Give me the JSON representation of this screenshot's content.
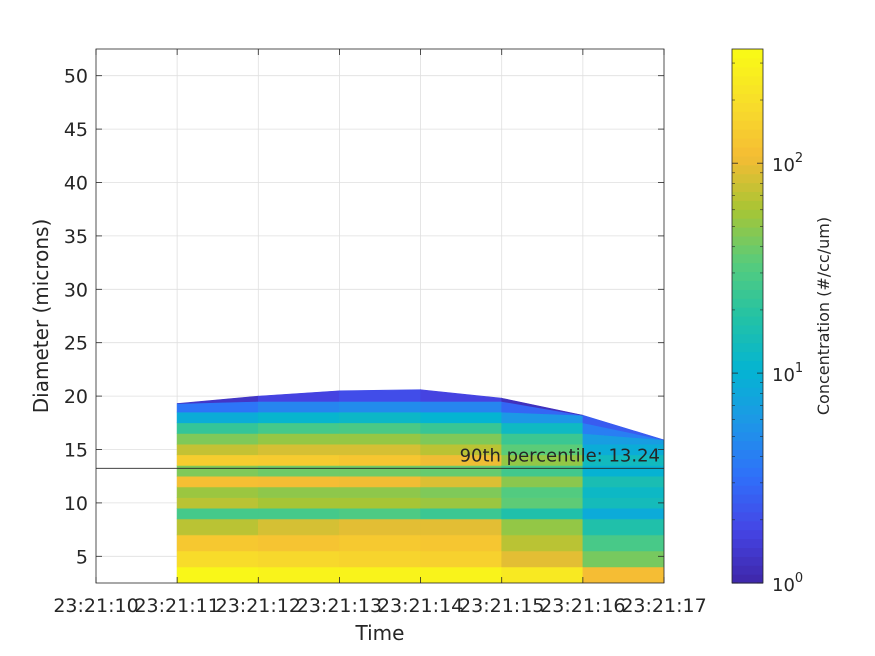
{
  "chart_data": {
    "type": "heatmap",
    "xlabel": "Time",
    "ylabel": "Diameter (microns)",
    "x_tick_labels": [
      "23:21:10",
      "23:21:11",
      "23:21:12",
      "23:21:13",
      "23:21:14",
      "23:21:15",
      "23:21:16",
      "23:21:17"
    ],
    "xlim": [
      "23:21:10",
      "23:21:17"
    ],
    "ylim": [
      2.5,
      52.5
    ],
    "y_ticks": [
      5,
      10,
      15,
      20,
      25,
      30,
      35,
      40,
      45,
      50
    ],
    "y_tick_labels": [
      "5",
      "10",
      "15",
      "20",
      "25",
      "30",
      "35",
      "40",
      "45",
      "50"
    ],
    "grid": true,
    "annotation": {
      "text": "90th percentile: 13.24",
      "value": 13.24
    },
    "colorbar": {
      "label": "Concentration (#/cc/um)",
      "scale": "log",
      "range": [
        1,
        350
      ],
      "ticks": [
        1,
        10,
        100
      ],
      "tick_bases": [
        "10",
        "10",
        "10"
      ],
      "tick_exponents": [
        "0",
        "1",
        "2"
      ],
      "colormap": "parula",
      "colors": [
        "#3e26a8",
        "#4545e5",
        "#2f70fa",
        "#1e96e7",
        "#04b4d2",
        "#24c2a4",
        "#57cc7c",
        "#a8c534",
        "#f5bc34",
        "#f8de2a",
        "#f9fb15"
      ]
    },
    "times": [
      "23:21:11",
      "23:21:12",
      "23:21:13",
      "23:21:14",
      "23:21:15",
      "23:21:16",
      "23:21:17"
    ],
    "diameters": [
      3,
      5,
      6,
      8,
      9,
      10,
      11,
      12,
      13,
      14,
      15,
      16,
      17,
      18,
      19,
      20
    ],
    "top_edge": [
      19.3,
      20.0,
      20.5,
      20.6,
      19.8,
      18.2,
      15.9
    ],
    "concentration": [
      [
        350,
        300,
        300,
        300,
        300,
        200,
        60
      ],
      [
        200,
        180,
        170,
        160,
        150,
        60,
        30
      ],
      [
        150,
        120,
        130,
        140,
        120,
        40,
        20
      ],
      [
        60,
        80,
        90,
        100,
        90,
        30,
        10
      ],
      [
        30,
        25,
        30,
        30,
        20,
        15,
        5
      ],
      [
        80,
        60,
        60,
        60,
        50,
        25,
        8
      ],
      [
        60,
        50,
        50,
        50,
        40,
        25,
        6
      ],
      [
        120,
        110,
        110,
        100,
        80,
        30,
        8
      ],
      [
        50,
        40,
        40,
        40,
        35,
        20,
        5
      ],
      [
        150,
        140,
        140,
        120,
        90,
        30,
        6
      ],
      [
        70,
        80,
        90,
        80,
        60,
        20,
        4
      ],
      [
        40,
        50,
        55,
        50,
        40,
        15,
        3
      ],
      [
        20,
        25,
        30,
        28,
        20,
        8,
        2
      ],
      [
        8,
        10,
        12,
        12,
        9,
        4,
        1.5
      ],
      [
        3,
        4,
        5,
        5,
        4,
        2,
        1
      ],
      [
        1.2,
        1.5,
        2,
        2,
        1.5,
        1,
        1
      ]
    ]
  }
}
